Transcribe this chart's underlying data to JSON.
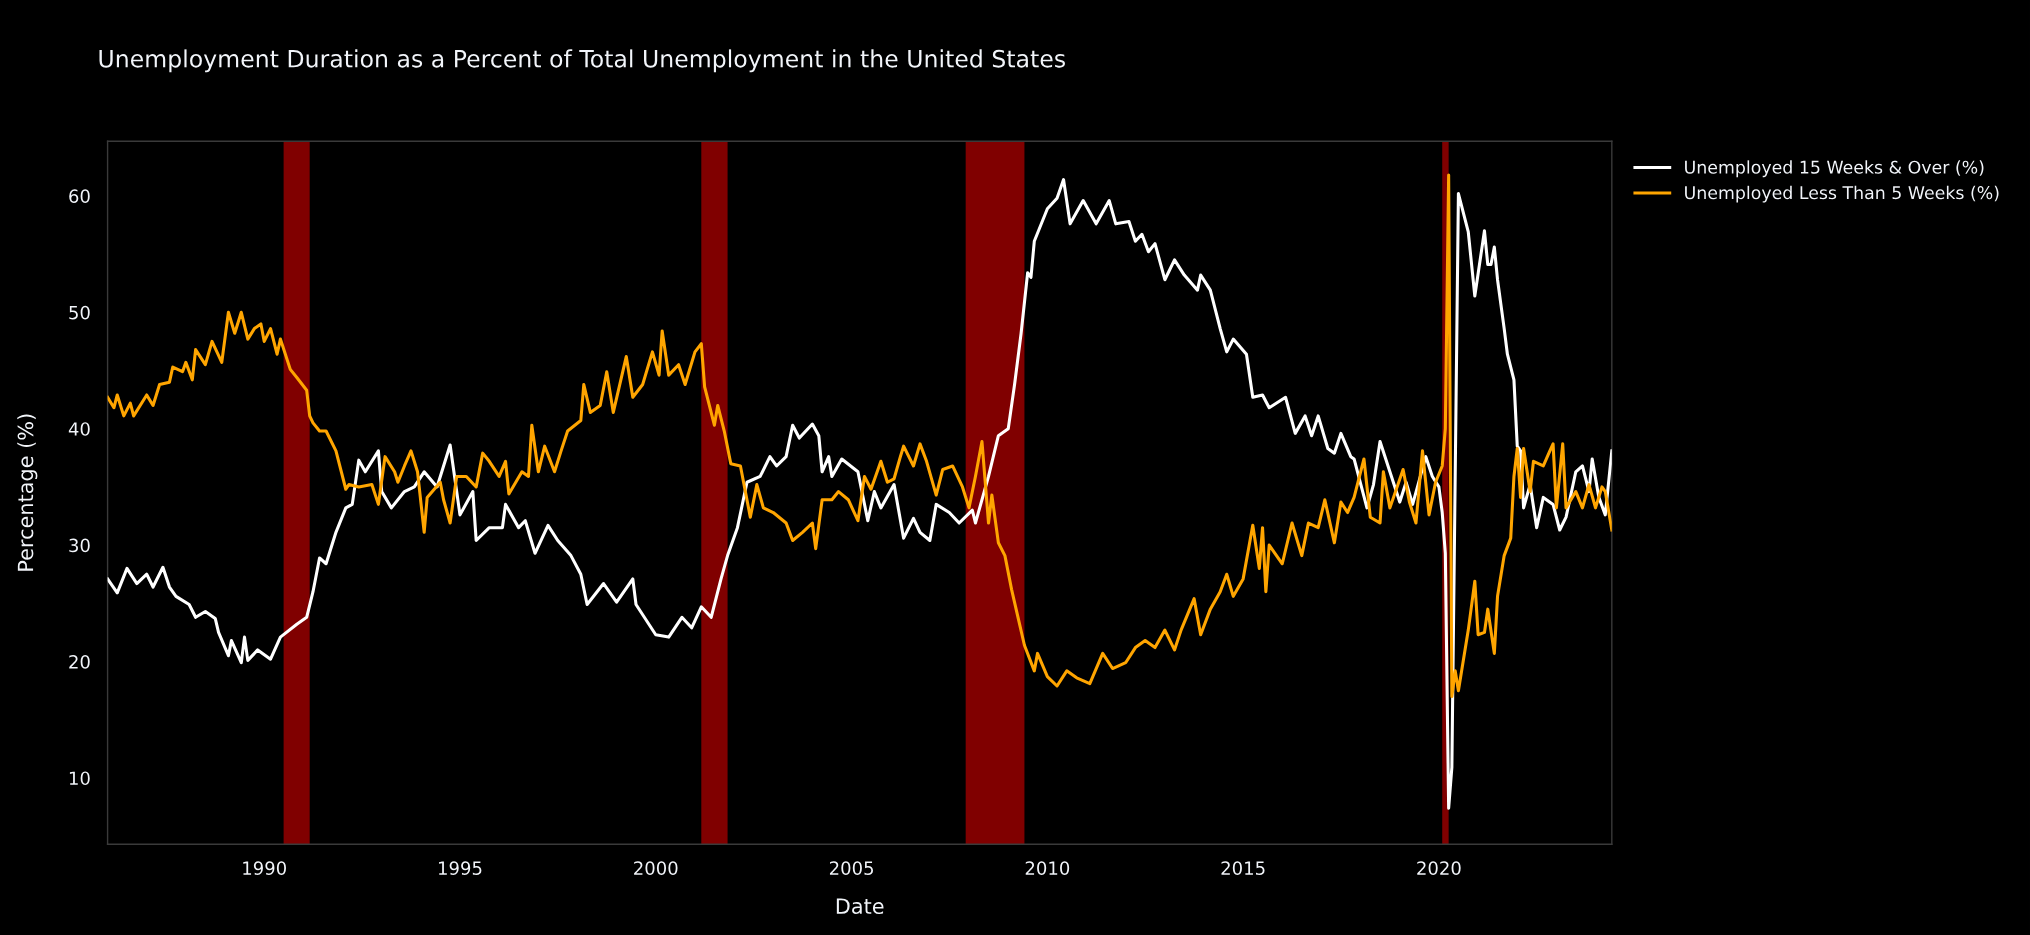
{
  "chart_data": {
    "type": "line",
    "title": "Unemployment Duration as a Percent of Total Unemployment in the United States",
    "xlabel": "Date",
    "ylabel": "Percentage (%)",
    "xlim": [
      "1986-01",
      "2024-06"
    ],
    "xticks": [
      {
        "value": "1990-01-01",
        "label": "1990"
      },
      {
        "value": "1995-01-01",
        "label": "1995"
      },
      {
        "value": "2000-01-01",
        "label": "2000"
      },
      {
        "value": "2005-01-01",
        "label": "2005"
      },
      {
        "value": "2010-01-01",
        "label": "2010"
      },
      {
        "value": "2015-01-01",
        "label": "2015"
      },
      {
        "value": "2020-01-01",
        "label": "2020"
      }
    ],
    "ylim": [
      4.3,
      64.7
    ],
    "yticks": [
      10,
      20,
      30,
      40,
      50,
      60
    ],
    "grid": false,
    "legend": "top right",
    "line_style": "solid",
    "marker": "none",
    "bands": [
      {
        "axis": "x",
        "from": "1990-07",
        "to": "1991-03",
        "color": "#800000"
      },
      {
        "axis": "x",
        "from": "2001-03",
        "to": "2001-11",
        "color": "#800000"
      },
      {
        "axis": "x",
        "from": "2007-12",
        "to": "2009-06",
        "color": "#800000"
      },
      {
        "axis": "x",
        "from": "2020-02",
        "to": "2020-04",
        "color": "#800000"
      }
    ],
    "series": [
      {
        "name": "Unemployed 15 Weeks & Over (%)",
        "color": "#ffffff",
        "x": [
          "1986-01",
          "1986-04",
          "1986-07",
          "1986-10",
          "1987-01",
          "1987-03",
          "1987-06",
          "1987-08",
          "1987-10",
          "1988-02",
          "1988-04",
          "1988-07",
          "1988-10",
          "1988-11",
          "1989-02",
          "1989-03",
          "1989-06",
          "1989-07",
          "1989-08",
          "1989-11",
          "1990-03",
          "1990-06",
          "1990-11",
          "1991-02",
          "1991-04",
          "1991-06",
          "1991-08",
          "1991-11",
          "1992-02",
          "1992-04",
          "1992-06",
          "1992-08",
          "1992-12",
          "1993-01",
          "1993-04",
          "1993-08",
          "1993-11",
          "1994-02",
          "1994-06",
          "1994-10",
          "1995-01",
          "1995-05",
          "1995-06",
          "1995-10",
          "1996-02",
          "1996-03",
          "1996-07",
          "1996-09",
          "1996-12",
          "1997-04",
          "1997-07",
          "1997-11",
          "1998-02",
          "1998-04",
          "1998-09",
          "1999-01",
          "1999-06",
          "1999-07",
          "2000-01",
          "2000-05",
          "2000-09",
          "2000-12",
          "2001-03",
          "2001-06",
          "2001-09",
          "2001-11",
          "2002-02",
          "2002-05",
          "2002-09",
          "2002-12",
          "2003-02",
          "2003-05",
          "2003-07",
          "2003-09",
          "2004-01",
          "2004-03",
          "2004-04",
          "2004-06",
          "2004-07",
          "2004-10",
          "2005-03",
          "2005-06",
          "2005-08",
          "2005-10",
          "2006-02",
          "2006-05",
          "2006-08",
          "2006-10",
          "2007-01",
          "2007-03",
          "2007-07",
          "2007-10",
          "2008-02",
          "2008-03",
          "2008-07",
          "2008-10",
          "2009-01",
          "2009-03",
          "2009-05",
          "2009-07",
          "2009-08",
          "2009-09",
          "2010-01",
          "2010-04",
          "2010-06",
          "2010-08",
          "2010-12",
          "2011-04",
          "2011-08",
          "2011-10",
          "2012-02",
          "2012-04",
          "2012-06",
          "2012-08",
          "2012-10",
          "2013-01",
          "2013-04",
          "2013-07",
          "2013-11",
          "2013-12",
          "2014-03",
          "2014-06",
          "2014-08",
          "2014-10",
          "2015-02",
          "2015-04",
          "2015-07",
          "2015-09",
          "2016-02",
          "2016-05",
          "2016-08",
          "2016-10",
          "2016-12",
          "2017-03",
          "2017-05",
          "2017-07",
          "2017-10",
          "2017-11",
          "2018-03",
          "2018-05",
          "2018-07",
          "2018-10",
          "2019-01",
          "2019-03",
          "2019-05",
          "2019-09",
          "2019-11",
          "2020-01",
          "2020-02",
          "2020-03",
          "2020-04",
          "2020-05",
          "2020-06",
          "2020-07",
          "2020-10",
          "2020-12",
          "2021-03",
          "2021-04",
          "2021-05",
          "2021-06",
          "2021-07",
          "2021-09",
          "2021-10",
          "2021-12",
          "2022-01",
          "2022-02",
          "2022-03",
          "2022-05",
          "2022-07",
          "2022-09",
          "2022-12",
          "2023-02",
          "2023-04",
          "2023-07",
          "2023-09",
          "2023-11",
          "2023-12",
          "2024-02",
          "2024-04",
          "2024-06"
        ],
        "values": [
          27.1,
          25.9,
          28.0,
          26.7,
          27.5,
          26.4,
          28.1,
          26.4,
          25.6,
          24.9,
          23.8,
          24.3,
          23.7,
          22.5,
          20.5,
          21.8,
          19.9,
          22.1,
          20.1,
          21.0,
          20.2,
          22.1,
          23.2,
          23.8,
          26.0,
          28.9,
          28.4,
          31.1,
          33.2,
          33.5,
          37.3,
          36.3,
          38.1,
          34.6,
          33.2,
          34.6,
          35.0,
          36.3,
          35.0,
          38.6,
          32.6,
          34.6,
          30.4,
          31.5,
          31.5,
          33.5,
          31.5,
          32.1,
          29.3,
          31.7,
          30.4,
          29.1,
          27.5,
          24.9,
          26.7,
          25.1,
          27.1,
          24.9,
          22.3,
          22.1,
          23.8,
          22.9,
          24.7,
          23.8,
          27.1,
          29.1,
          31.5,
          35.4,
          35.9,
          37.6,
          36.8,
          37.6,
          40.3,
          39.2,
          40.4,
          39.4,
          36.3,
          37.6,
          35.9,
          37.4,
          36.3,
          32.1,
          34.6,
          33.2,
          35.2,
          30.6,
          32.3,
          31.1,
          30.4,
          33.5,
          32.8,
          31.9,
          33.0,
          31.9,
          35.9,
          39.4,
          40.0,
          43.8,
          48.2,
          53.4,
          53.0,
          56.1,
          58.9,
          59.8,
          61.4,
          57.6,
          59.6,
          57.6,
          59.6,
          57.6,
          57.8,
          56.1,
          56.7,
          55.2,
          55.9,
          52.8,
          54.5,
          53.2,
          51.9,
          53.2,
          51.9,
          48.6,
          46.6,
          47.7,
          46.4,
          42.7,
          42.9,
          41.8,
          42.7,
          39.6,
          41.1,
          39.4,
          41.1,
          38.3,
          37.9,
          39.6,
          37.6,
          37.4,
          33.2,
          35.2,
          38.9,
          36.3,
          33.7,
          35.4,
          33.5,
          37.6,
          35.9,
          35.0,
          32.8,
          29.3,
          7.4,
          10.9,
          35.9,
          60.2,
          56.9,
          51.4,
          57.0,
          54.1,
          54.1,
          55.6,
          52.8,
          48.6,
          46.4,
          44.2,
          38.5,
          38.1,
          33.2,
          35.2,
          31.5,
          34.1,
          33.5,
          31.3,
          32.4,
          36.3,
          36.8,
          34.6,
          37.4,
          34.1,
          32.6,
          38.1
        ]
      },
      {
        "name": "Unemployed Less Than 5 Weeks (%)",
        "color": "#ffa500",
        "x": [
          "1986-01",
          "1986-03",
          "1986-04",
          "1986-06",
          "1986-08",
          "1986-09",
          "1987-01",
          "1987-03",
          "1987-05",
          "1987-08",
          "1987-09",
          "1987-12",
          "1988-01",
          "1988-03",
          "1988-04",
          "1988-07",
          "1988-09",
          "1988-12",
          "1989-02",
          "1989-04",
          "1989-06",
          "1989-08",
          "1989-10",
          "1989-12",
          "1990-01",
          "1990-03",
          "1990-05",
          "1990-06",
          "1990-09",
          "1990-11",
          "1991-02",
          "1991-03",
          "1991-04",
          "1991-06",
          "1991-08",
          "1991-11",
          "1992-02",
          "1992-03",
          "1992-06",
          "1992-10",
          "1992-12",
          "1993-02",
          "1993-05",
          "1993-06",
          "1993-08",
          "1993-10",
          "1993-12",
          "1994-02",
          "1994-03",
          "1994-07",
          "1994-08",
          "1994-10",
          "1994-12",
          "1995-03",
          "1995-06",
          "1995-08",
          "1995-10",
          "1996-01",
          "1996-03",
          "1996-04",
          "1996-08",
          "1996-10",
          "1996-11",
          "1997-01",
          "1997-03",
          "1997-06",
          "1997-08",
          "1997-10",
          "1998-02",
          "1998-03",
          "1998-05",
          "1998-08",
          "1998-10",
          "1998-12",
          "1999-04",
          "1999-06",
          "1999-09",
          "1999-12",
          "2000-02",
          "2000-03",
          "2000-05",
          "2000-08",
          "2000-10",
          "2001-01",
          "2001-03",
          "2001-04",
          "2001-07",
          "2001-08",
          "2001-10",
          "2001-12",
          "2002-03",
          "2002-06",
          "2002-08",
          "2002-10",
          "2003-01",
          "2003-05",
          "2003-07",
          "2003-10",
          "2004-01",
          "2004-02",
          "2004-04",
          "2004-07",
          "2004-09",
          "2004-12",
          "2005-03",
          "2005-05",
          "2005-07",
          "2005-10",
          "2005-12",
          "2006-02",
          "2006-04",
          "2006-05",
          "2006-08",
          "2006-10",
          "2006-12",
          "2007-03",
          "2007-05",
          "2007-08",
          "2007-11",
          "2008-01",
          "2008-03",
          "2008-05",
          "2008-07",
          "2008-08",
          "2008-10",
          "2008-12",
          "2009-02",
          "2009-06",
          "2009-09",
          "2009-10",
          "2010-01",
          "2010-04",
          "2010-07",
          "2010-10",
          "2011-02",
          "2011-06",
          "2011-09",
          "2012-01",
          "2012-04",
          "2012-07",
          "2012-10",
          "2013-01",
          "2013-04",
          "2013-06",
          "2013-10",
          "2013-12",
          "2014-03",
          "2014-06",
          "2014-08",
          "2014-10",
          "2015-01",
          "2015-04",
          "2015-06",
          "2015-07",
          "2015-08",
          "2015-09",
          "2016-01",
          "2016-04",
          "2016-07",
          "2016-09",
          "2016-12",
          "2017-02",
          "2017-05",
          "2017-07",
          "2017-09",
          "2017-11",
          "2018-02",
          "2018-04",
          "2018-07",
          "2018-08",
          "2018-10",
          "2019-02",
          "2019-04",
          "2019-06",
          "2019-08",
          "2019-10",
          "2019-12",
          "2020-02",
          "2020-03",
          "2020-04",
          "2020-05",
          "2020-06",
          "2020-07",
          "2020-10",
          "2020-12",
          "2021-01",
          "2021-03",
          "2021-04",
          "2021-06",
          "2021-07",
          "2021-09",
          "2021-11",
          "2021-12",
          "2022-01",
          "2022-02",
          "2022-03",
          "2022-05",
          "2022-06",
          "2022-09",
          "2022-11",
          "2022-12",
          "2023-01",
          "2023-03",
          "2023-04",
          "2023-07",
          "2023-09",
          "2023-11",
          "2024-01",
          "2024-03",
          "2024-04",
          "2024-06"
        ],
        "values": [
          42.7,
          41.8,
          42.9,
          41.1,
          42.2,
          41.1,
          42.9,
          42.0,
          43.8,
          44.0,
          45.3,
          44.9,
          45.7,
          44.2,
          46.8,
          45.5,
          47.5,
          45.7,
          50.0,
          48.2,
          50.0,
          47.7,
          48.6,
          49.0,
          47.5,
          48.6,
          46.4,
          47.7,
          45.1,
          44.4,
          43.3,
          41.1,
          40.5,
          39.8,
          39.8,
          38.1,
          34.8,
          35.2,
          35.0,
          35.2,
          33.5,
          37.6,
          36.3,
          35.4,
          36.8,
          38.1,
          36.3,
          31.1,
          34.1,
          35.4,
          33.9,
          31.9,
          35.9,
          35.9,
          35.0,
          37.9,
          37.2,
          35.9,
          37.2,
          34.4,
          36.3,
          35.9,
          40.3,
          36.3,
          38.5,
          36.3,
          38.1,
          39.8,
          40.7,
          43.8,
          41.4,
          42.0,
          44.9,
          41.4,
          46.2,
          42.7,
          43.8,
          46.6,
          44.6,
          48.4,
          44.6,
          45.5,
          43.8,
          46.6,
          47.3,
          43.6,
          40.3,
          42.0,
          39.8,
          37.0,
          36.8,
          32.4,
          35.2,
          33.2,
          32.8,
          31.9,
          30.4,
          31.1,
          31.9,
          29.7,
          33.9,
          33.9,
          34.6,
          33.9,
          32.1,
          35.9,
          34.8,
          37.2,
          35.4,
          35.7,
          37.6,
          38.5,
          36.8,
          38.7,
          37.2,
          34.3,
          36.5,
          36.8,
          35.0,
          33.2,
          35.9,
          38.9,
          31.9,
          34.3,
          30.2,
          29.1,
          26.2,
          21.4,
          19.2,
          20.7,
          18.7,
          17.9,
          19.2,
          18.6,
          18.1,
          20.7,
          19.4,
          19.9,
          21.2,
          21.8,
          21.2,
          22.7,
          21.0,
          22.7,
          25.4,
          22.3,
          24.5,
          26.0,
          27.5,
          25.6,
          27.1,
          31.7,
          28.0,
          31.5,
          26.0,
          30.0,
          28.4,
          31.9,
          29.1,
          31.9,
          31.5,
          33.9,
          30.2,
          33.7,
          32.8,
          34.1,
          37.4,
          32.4,
          31.9,
          36.3,
          33.2,
          36.5,
          33.7,
          31.9,
          38.1,
          32.6,
          35.4,
          36.8,
          40.0,
          61.8,
          17.0,
          19.2,
          17.5,
          22.7,
          26.9,
          22.3,
          22.5,
          24.5,
          20.7,
          25.6,
          29.1,
          30.6,
          35.9,
          38.3,
          34.1,
          38.3,
          34.6,
          37.2,
          36.8,
          38.1,
          38.7,
          33.2,
          38.7,
          33.2,
          34.6,
          33.2,
          35.2,
          33.2,
          35.0,
          34.6,
          31.3
        ]
      }
    ]
  }
}
